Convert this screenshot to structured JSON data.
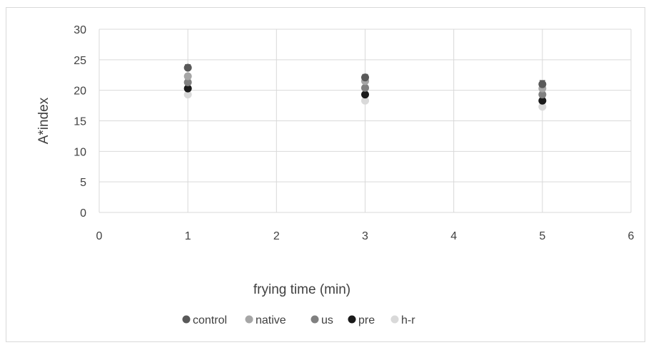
{
  "chart_data": {
    "type": "scatter",
    "title": "",
    "xlabel": "frying time (min)",
    "ylabel": "A*index",
    "xlim": [
      0,
      6
    ],
    "ylim": [
      0,
      30
    ],
    "xticks": [
      "0",
      "1",
      "2",
      "3",
      "4",
      "5",
      "6"
    ],
    "yticks": [
      "0",
      "5",
      "10",
      "15",
      "20",
      "25",
      "30"
    ],
    "grid": true,
    "legend_position": "bottom",
    "error_bars": true,
    "series": [
      {
        "name": "control",
        "color": "#595959",
        "x": [
          1,
          3,
          5
        ],
        "y": [
          23.7,
          22.1,
          21.0
        ],
        "err": [
          0.5,
          0.5,
          0.6
        ]
      },
      {
        "name": "native",
        "color": "#a6a6a6",
        "x": [
          1,
          3,
          5
        ],
        "y": [
          22.3,
          21.5,
          20.3
        ],
        "err": [
          0.4,
          0.4,
          0.4
        ]
      },
      {
        "name": "us",
        "color": "#808080",
        "x": [
          1,
          3,
          5
        ],
        "y": [
          21.3,
          20.4,
          19.3
        ],
        "err": [
          0.4,
          0.4,
          0.4
        ]
      },
      {
        "name": "pre",
        "color": "#1a1a1a",
        "x": [
          1,
          3,
          5
        ],
        "y": [
          20.3,
          19.3,
          18.3
        ],
        "err": [
          0.3,
          0.3,
          0.3
        ]
      },
      {
        "name": "h-r",
        "color": "#d9d9d9",
        "x": [
          1,
          3,
          5
        ],
        "y": [
          19.3,
          18.3,
          17.3
        ],
        "err": [
          0.3,
          0.3,
          0.3
        ]
      }
    ]
  }
}
